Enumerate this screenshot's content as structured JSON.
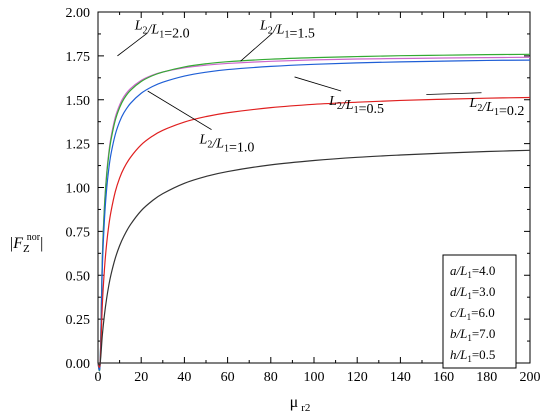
{
  "chart_data": {
    "type": "line",
    "xlabel": "μ r2",
    "ylabel": "|F_Z^nor|",
    "xlim": [
      0,
      200
    ],
    "ylim": [
      0,
      2.0
    ],
    "x_ticks": [
      "0",
      "20",
      "40",
      "60",
      "80",
      "100",
      "120",
      "140",
      "160",
      "180",
      "200"
    ],
    "y_ticks": [
      "0.00",
      "0.25",
      "0.50",
      "0.75",
      "1.00",
      "1.25",
      "1.50",
      "1.75",
      "2.00"
    ],
    "grid": false,
    "x": [
      1,
      2,
      3,
      4,
      5,
      6,
      8,
      10,
      12,
      15,
      20,
      25,
      30,
      40,
      50,
      60,
      80,
      100,
      120,
      140,
      160,
      180,
      200
    ],
    "series": [
      {
        "name": "L2/L1=2.0",
        "color": "#cc66cc",
        "values": [
          0.0,
          0.6,
          0.9,
          1.08,
          1.2,
          1.286,
          1.4,
          1.47,
          1.518,
          1.563,
          1.61,
          1.639,
          1.658,
          1.682,
          1.697,
          1.707,
          1.719,
          1.727,
          1.732,
          1.735,
          1.738,
          1.74,
          1.742
        ]
      },
      {
        "name": "L2/L1=1.5",
        "color": "#33aa33",
        "values": [
          0.0,
          0.593,
          0.889,
          1.067,
          1.185,
          1.27,
          1.383,
          1.455,
          1.505,
          1.553,
          1.604,
          1.636,
          1.658,
          1.687,
          1.705,
          1.717,
          1.731,
          1.74,
          1.746,
          1.751,
          1.754,
          1.757,
          1.759
        ]
      },
      {
        "name": "L2/L1=1.0",
        "color": "#1f5fd6",
        "values": [
          0.0,
          0.54,
          0.82,
          0.991,
          1.107,
          1.19,
          1.302,
          1.375,
          1.426,
          1.479,
          1.537,
          1.574,
          1.6,
          1.635,
          1.657,
          1.672,
          1.69,
          1.702,
          1.71,
          1.716,
          1.72,
          1.724,
          1.726
        ]
      },
      {
        "name": "L2/L1=0.5",
        "color": "#e02020",
        "values": [
          0.0,
          0.33,
          0.537,
          0.68,
          0.784,
          0.862,
          0.976,
          1.054,
          1.11,
          1.171,
          1.243,
          1.291,
          1.326,
          1.373,
          1.404,
          1.426,
          1.455,
          1.474,
          1.486,
          1.496,
          1.503,
          1.509,
          1.513
        ]
      },
      {
        "name": "L2/L1=0.2",
        "color": "#333333",
        "values": [
          0.0,
          0.158,
          0.276,
          0.368,
          0.442,
          0.503,
          0.597,
          0.668,
          0.723,
          0.788,
          0.868,
          0.923,
          0.965,
          1.024,
          1.063,
          1.091,
          1.129,
          1.154,
          1.172,
          1.185,
          1.196,
          1.205,
          1.212
        ]
      }
    ],
    "annotations": [
      {
        "series": "L2/L1=2.0",
        "text": "L2/L1=2.0",
        "at_x": 9,
        "at_y": 1.75,
        "text_x": 17,
        "text_y": 1.9
      },
      {
        "series": "L2/L1=1.5",
        "text": "L2/L1=1.5",
        "at_x": 66,
        "at_y": 1.72,
        "text_x": 75,
        "text_y": 1.9
      },
      {
        "series": "L2/L1=1.0",
        "text": "L2/L1=1.0",
        "at_x": 23,
        "at_y": 1.55,
        "text_x": 47,
        "text_y": 1.25
      },
      {
        "series": "L2/L1=0.5",
        "text": "L2/L1=0.5",
        "at_x": 91,
        "at_y": 1.63,
        "text_x": 107,
        "text_y": 1.47
      },
      {
        "series": "L2/L1=0.2",
        "text": "L2/L1=0.2",
        "at_x": 152,
        "at_y": 1.53,
        "text_x": 172,
        "text_y": 1.46
      }
    ],
    "parameters": [
      {
        "num": "a",
        "den": "L1",
        "value": "4.0"
      },
      {
        "num": "d",
        "den": "L1",
        "value": "3.0"
      },
      {
        "num": "c",
        "den": "L1",
        "value": "6.0"
      },
      {
        "num": "b",
        "den": "L1",
        "value": "7.0"
      },
      {
        "num": "h",
        "den": "L1",
        "value": "0.5"
      }
    ]
  }
}
